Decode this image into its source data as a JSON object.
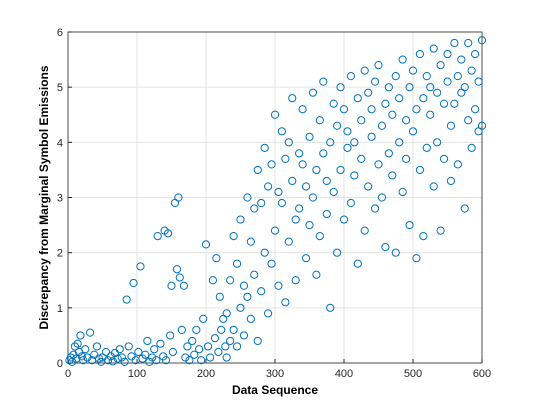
{
  "chart_data": {
    "type": "scatter",
    "x_label": "Data Sequence",
    "y_label": "Discrepancy from Marginal Symbol Emissions",
    "color": "#0072bd",
    "grid": true,
    "xlim": [
      0,
      600
    ],
    "xticks": [
      0,
      100,
      200,
      300,
      400,
      500,
      600
    ],
    "ylim": [
      0,
      6
    ],
    "yticks": [
      0,
      1,
      2,
      3,
      4,
      5,
      6
    ],
    "x": [
      2,
      4,
      6,
      8,
      10,
      12,
      14,
      16,
      18,
      20,
      22,
      25,
      28,
      32,
      35,
      38,
      42,
      45,
      48,
      50,
      55,
      58,
      62,
      65,
      68,
      72,
      75,
      78,
      82,
      85,
      88,
      92,
      95,
      98,
      102,
      105,
      108,
      112,
      115,
      118,
      122,
      125,
      128,
      130,
      134,
      138,
      140,
      142,
      145,
      148,
      150,
      152,
      155,
      158,
      160,
      162,
      165,
      168,
      170,
      173,
      176,
      180,
      183,
      186,
      190,
      193,
      196,
      200,
      203,
      206,
      210,
      213,
      215,
      218,
      220,
      222,
      225,
      228,
      230,
      230,
      235,
      235,
      240,
      240,
      245,
      245,
      250,
      250,
      255,
      255,
      260,
      260,
      265,
      265,
      270,
      270,
      275,
      275,
      280,
      280,
      285,
      285,
      290,
      290,
      295,
      295,
      300,
      300,
      305,
      305,
      310,
      310,
      315,
      315,
      320,
      320,
      325,
      325,
      330,
      330,
      335,
      335,
      340,
      340,
      345,
      345,
      350,
      350,
      355,
      355,
      360,
      360,
      365,
      365,
      370,
      370,
      375,
      375,
      380,
      380,
      385,
      385,
      390,
      390,
      395,
      395,
      400,
      400,
      405,
      405,
      410,
      410,
      415,
      415,
      420,
      420,
      425,
      425,
      430,
      430,
      435,
      435,
      440,
      440,
      445,
      445,
      450,
      450,
      455,
      455,
      460,
      460,
      465,
      465,
      470,
      470,
      475,
      475,
      480,
      480,
      485,
      485,
      490,
      490,
      495,
      495,
      500,
      500,
      505,
      505,
      510,
      510,
      515,
      515,
      520,
      520,
      525,
      525,
      530,
      530,
      535,
      535,
      540,
      540,
      545,
      545,
      550,
      550,
      555,
      555,
      560,
      560,
      565,
      565,
      570,
      570,
      575,
      575,
      580,
      580,
      585,
      585,
      590,
      590,
      595,
      595,
      600,
      600
    ],
    "values": [
      0.05,
      0.1,
      0.02,
      0.15,
      0.3,
      0.08,
      0.35,
      0.2,
      0.5,
      0.12,
      0.05,
      0.25,
      0.1,
      0.55,
      0.05,
      0.15,
      0.3,
      0.08,
      0.02,
      0.1,
      0.2,
      0.05,
      0.12,
      0.03,
      0.18,
      0.08,
      0.25,
      0.1,
      0.02,
      1.15,
      0.3,
      0.12,
      1.45,
      0.05,
      0.2,
      1.75,
      0.08,
      0.15,
      0.4,
      0.02,
      0.1,
      0.25,
      0.05,
      2.3,
      0.35,
      0.12,
      2.4,
      0.05,
      2.35,
      0.5,
      1.4,
      0.2,
      2.9,
      1.7,
      3.0,
      1.55,
      0.6,
      1.4,
      0.1,
      0.3,
      0.05,
      0.4,
      0.15,
      0.6,
      0.25,
      0.05,
      0.8,
      2.15,
      0.3,
      0.1,
      1.5,
      0.45,
      1.9,
      0.2,
      1.2,
      0.6,
      0.8,
      0.3,
      0.1,
      0.9,
      0.4,
      1.5,
      0.6,
      2.3,
      0.3,
      1.8,
      1.0,
      2.6,
      0.5,
      1.4,
      1.2,
      3.0,
      0.8,
      2.2,
      1.6,
      2.8,
      0.4,
      3.5,
      1.3,
      2.9,
      2.0,
      3.9,
      0.9,
      3.2,
      1.8,
      3.6,
      2.4,
      4.5,
      1.4,
      3.1,
      2.9,
      4.2,
      1.1,
      3.7,
      2.2,
      4.0,
      3.3,
      4.8,
      1.5,
      2.6,
      2.8,
      3.8,
      3.6,
      4.6,
      1.9,
      3.2,
      2.5,
      4.1,
      3.0,
      4.9,
      1.6,
      3.5,
      2.3,
      4.4,
      3.8,
      5.1,
      2.7,
      3.3,
      1.0,
      4.0,
      3.1,
      4.7,
      2.0,
      4.3,
      3.5,
      5.0,
      2.6,
      4.6,
      3.9,
      4.2,
      2.9,
      5.2,
      3.4,
      4.0,
      1.8,
      4.8,
      3.7,
      4.4,
      2.4,
      5.3,
      3.2,
      4.9,
      4.1,
      4.6,
      2.8,
      5.1,
      3.6,
      5.4,
      4.3,
      3.0,
      2.1,
      4.7,
      3.8,
      5.0,
      4.5,
      3.4,
      2.0,
      5.2,
      4.0,
      4.8,
      3.1,
      5.5,
      4.4,
      3.7,
      2.5,
      5.0,
      4.2,
      5.3,
      1.9,
      4.6,
      3.5,
      5.6,
      4.8,
      2.3,
      3.9,
      5.2,
      4.5,
      5.0,
      3.2,
      5.7,
      4.9,
      4.0,
      2.4,
      5.4,
      3.7,
      4.7,
      5.1,
      5.6,
      4.3,
      3.3,
      4.7,
      5.8,
      3.6,
      5.2,
      4.9,
      5.5,
      2.8,
      5.0,
      4.4,
      5.8,
      3.9,
      5.3,
      4.6,
      5.6,
      4.2,
      5.1,
      4.3,
      5.85
    ]
  }
}
